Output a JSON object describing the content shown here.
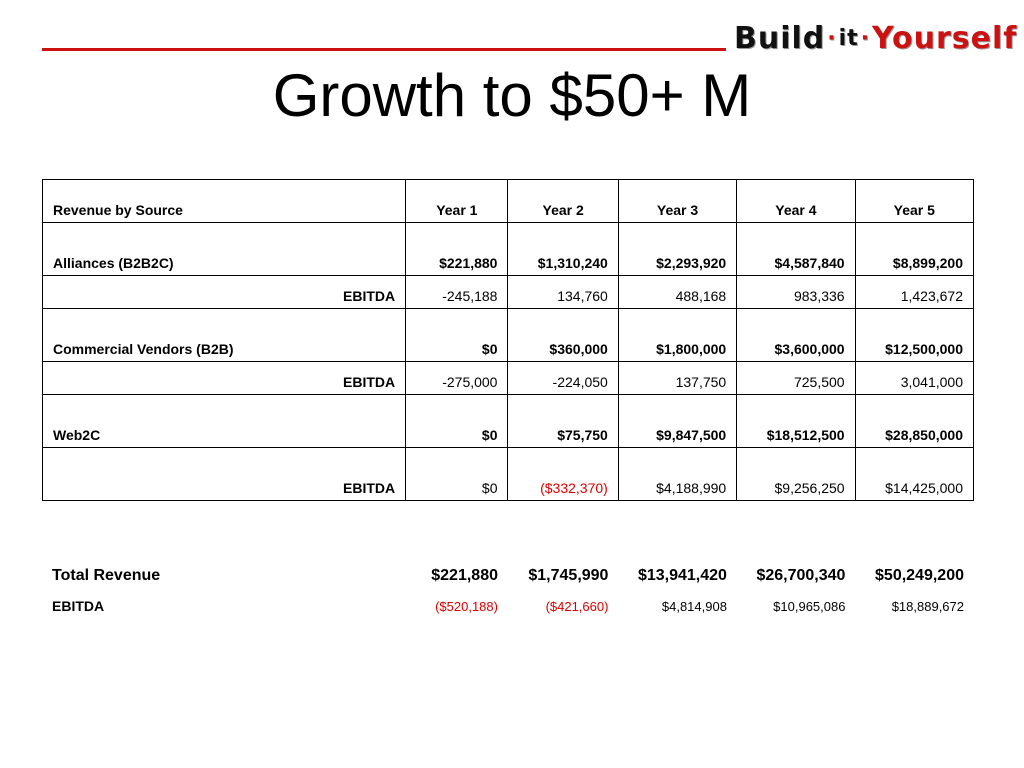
{
  "logo": {
    "part1": "Build",
    "sep": "·",
    "part2": "it",
    "part3": "Yourself"
  },
  "title": "Growth to $50+ M",
  "table": {
    "header": {
      "label": "Revenue by Source",
      "years": [
        "Year 1",
        "Year 2",
        "Year 3",
        "Year 4",
        "Year 5"
      ]
    },
    "rows": [
      {
        "label": "Alliances (B2B2C)",
        "values": [
          "$221,880",
          "$1,310,240",
          "$2,293,920",
          "$4,587,840",
          "$8,899,200"
        ]
      },
      {
        "label": "EBITDA",
        "values": [
          "-245,188",
          "134,760",
          "488,168",
          "983,336",
          "1,423,672"
        ]
      },
      {
        "label": "Commercial Vendors (B2B)",
        "values": [
          "$0",
          "$360,000",
          "$1,800,000",
          "$3,600,000",
          "$12,500,000"
        ]
      },
      {
        "label": "EBITDA",
        "values": [
          "-275,000",
          "-224,050",
          "137,750",
          "725,500",
          "3,041,000"
        ]
      },
      {
        "label": "Web2C",
        "values": [
          "$0",
          "$75,750",
          "$9,847,500",
          "$18,512,500",
          "$28,850,000"
        ]
      },
      {
        "label": "EBITDA",
        "values": [
          "$0",
          "($332,370)",
          "$4,188,990",
          "$9,256,250",
          "$14,425,000"
        ]
      }
    ]
  },
  "totals": {
    "revenue": {
      "label": "Total Revenue",
      "values": [
        "$221,880",
        "$1,745,990",
        "$13,941,420",
        "$26,700,340",
        "$50,249,200"
      ]
    },
    "ebitda": {
      "label": "EBITDA",
      "values": [
        "($520,188)",
        "($421,660)",
        "$4,814,908",
        "$10,965,086",
        "$18,889,672"
      ]
    }
  },
  "colors": {
    "accent_rule": "#cc1111",
    "negative_text": "#dd0000"
  }
}
